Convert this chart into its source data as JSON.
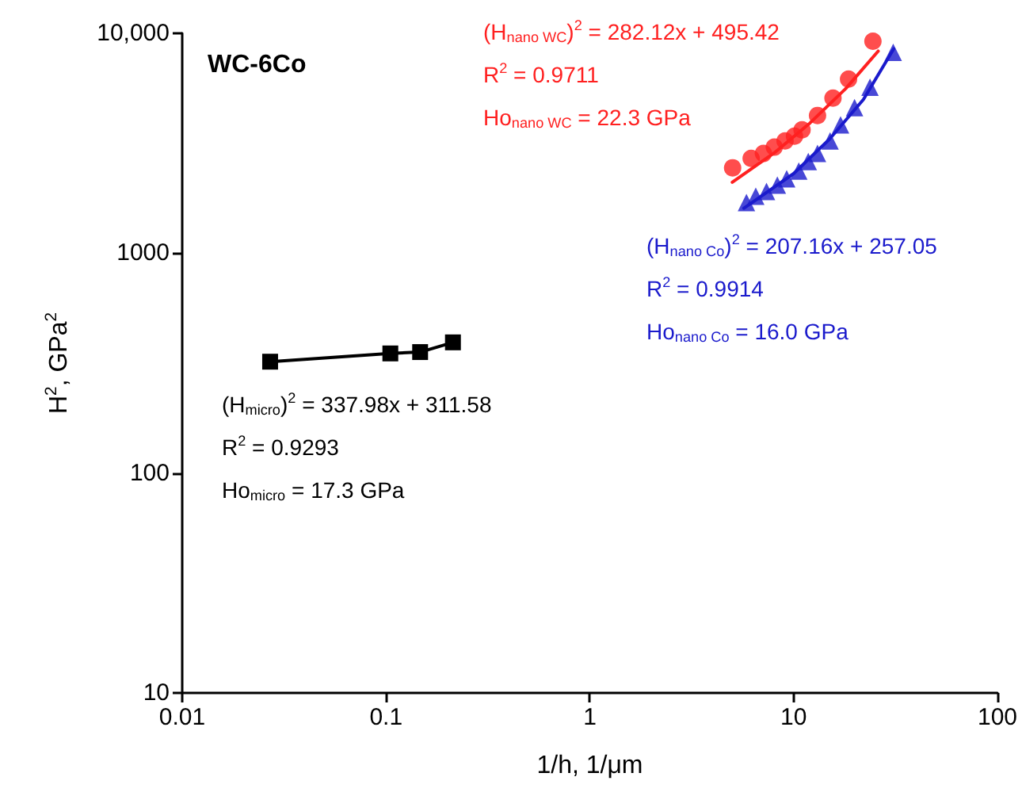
{
  "chart_data": {
    "type": "scatter",
    "title": "WC-6Co",
    "xlabel": "1/h, 1/μm",
    "ylabel": "H$^{2}$, GPa$^{2}$",
    "xlim": [
      0.01,
      100
    ],
    "xticks": [
      0.01,
      0.1,
      1,
      10,
      100
    ],
    "ylim": [
      10,
      10000
    ],
    "yticks": [
      10,
      100,
      1000,
      {
        "value": 10000,
        "label": "10,000"
      }
    ],
    "log": "xy",
    "grid": false,
    "series": [
      {
        "type": "line",
        "marker": "square",
        "color": "#000000",
        "x": [
          0.027,
          0.105,
          0.147,
          0.213
        ],
        "values": [
          321,
          350,
          355,
          393
        ]
      },
      {
        "marker": "circle",
        "color": "#ff2020",
        "x": [
          5.02,
          6.19,
          7.11,
          8.04,
          9.08,
          10.1,
          11.0,
          13.1,
          15.6,
          18.6,
          24.5
        ],
        "values": [
          2445,
          2700,
          2840,
          3035,
          3240,
          3405,
          3640,
          4230,
          5070,
          6190,
          9200
        ]
      },
      {
        "type": "line",
        "marker": "none",
        "color": "#ff2020",
        "x": [
          5,
          8,
          12,
          18,
          26
        ],
        "values": [
          2100,
          2850,
          3900,
          5600,
          8300
        ]
      },
      {
        "marker": "triangle",
        "color": "#1a1acc",
        "x": [
          5.87,
          6.52,
          7.36,
          8.32,
          9.25,
          10.6,
          11.8,
          13.1,
          15.1,
          17.0,
          19.9,
          23.7,
          30.8
        ],
        "values": [
          1700,
          1815,
          1910,
          2040,
          2180,
          2365,
          2610,
          2840,
          3240,
          3830,
          4590,
          5690,
          8200
        ]
      },
      {
        "type": "line",
        "marker": "none",
        "color": "#1a1acc",
        "x": [
          5.7,
          10,
          15,
          22,
          31
        ],
        "values": [
          1600,
          2300,
          3300,
          5000,
          8500
        ]
      }
    ],
    "annotations": [
      "(H$_{micro}$)$^{2}$ = 337.98x + 311.58",
      "R$^{2}$ = 0.9293",
      "Ho$_{micro}$ = 17.3 GPa",
      "(H$_{nano WC}$)$^{2}$ = 282.12x + 495.42",
      "R$^{2}$ = 0.9711",
      "Ho$_{nano WC}$ = 22.3 GPa",
      "(H$_{nano Co}$)$^{2}$ = 207.16x + 257.05",
      "R$^{2}$ = 0.9914",
      "Ho$_{nano Co}$ = 16.0 GPa"
    ]
  }
}
